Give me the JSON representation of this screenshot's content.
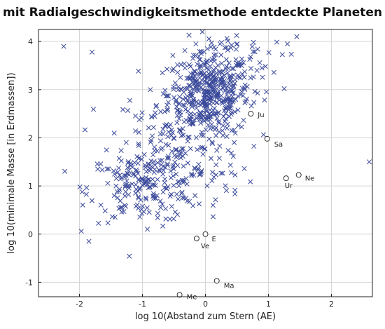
{
  "chart_data": {
    "type": "scatter",
    "title": "mit Radialgeschwindigkeitsmethode entdeckte Planeten",
    "xlabel": "log 10(Abstand zum Stern (AE)",
    "ylabel": "log 10(minimale Masse [in Erdmassen])",
    "xlim": [
      -2.65,
      2.65
    ],
    "ylim": [
      -1.3,
      4.25
    ],
    "xticks": [
      -2,
      -1,
      0,
      1,
      2
    ],
    "yticks": [
      -1,
      0,
      1,
      2,
      3,
      4
    ],
    "grid": true,
    "marker_color": "#3b4a9b",
    "solar_system": [
      {
        "name": "Me",
        "x": -0.41,
        "y": -1.26
      },
      {
        "name": "Ve",
        "x": -0.14,
        "y": -0.09
      },
      {
        "name": "E",
        "x": 0.0,
        "y": 0.0
      },
      {
        "name": "Ma",
        "x": 0.18,
        "y": -0.97
      },
      {
        "name": "Ju",
        "x": 0.72,
        "y": 2.5
      },
      {
        "name": "Sa",
        "x": 0.98,
        "y": 1.98
      },
      {
        "name": "Ur",
        "x": 1.28,
        "y": 1.16
      },
      {
        "name": "Ne",
        "x": 1.48,
        "y": 1.23
      }
    ],
    "clusters": [
      {
        "cx": 0.05,
        "cy": 2.9,
        "sx": 0.32,
        "sy": 0.42,
        "n": 430
      },
      {
        "cx": -0.95,
        "cy": 0.95,
        "sx": 0.45,
        "sy": 0.35,
        "n": 190
      },
      {
        "cx": -0.6,
        "cy": 2.05,
        "sx": 0.45,
        "sy": 0.5,
        "n": 110
      },
      {
        "cx": 0.3,
        "cy": 3.6,
        "sx": 0.45,
        "sy": 0.35,
        "n": 70
      },
      {
        "cx": -0.25,
        "cy": 1.35,
        "sx": 0.5,
        "sy": 0.4,
        "n": 60
      }
    ],
    "extra_points": [
      {
        "x": -2.25,
        "y": 3.9
      },
      {
        "x": -1.8,
        "y": 3.78
      },
      {
        "x": -1.85,
        "y": -0.15
      },
      {
        "x": 2.6,
        "y": 1.5
      },
      {
        "x": 1.45,
        "y": 4.1
      },
      {
        "x": 1.25,
        "y": 3.02
      },
      {
        "x": 0.12,
        "y": 0.6
      },
      {
        "x": -0.05,
        "y": 4.2
      }
    ]
  }
}
